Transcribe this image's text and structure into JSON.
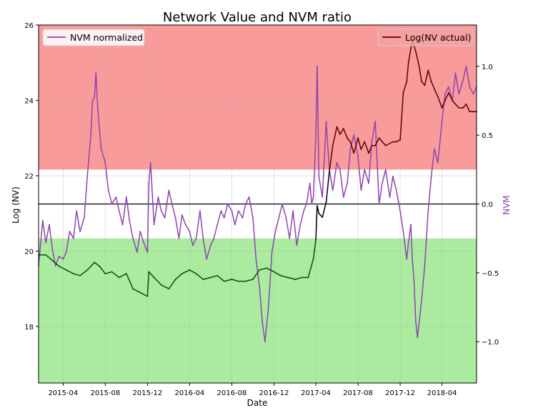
{
  "chart_data": {
    "type": "line",
    "title": "Network Value and NVM ratio",
    "xlabel": "Date",
    "ylabel_left": "Log (NV)",
    "ylabel_right": "NVM",
    "x_ticks": [
      "2015-04",
      "2015-08",
      "2015-12",
      "2016-04",
      "2016-08",
      "2016-12",
      "2017-04",
      "2017-08",
      "2017-12",
      "2018-04"
    ],
    "xlim": [
      "2015-01-20",
      "2018-07-10"
    ],
    "ylim_left": [
      16.5,
      26.0
    ],
    "y_ticks_left": [
      18,
      20,
      22,
      24,
      26
    ],
    "ylim_right": [
      -1.3,
      1.3
    ],
    "y_ticks_right": [
      -1.0,
      -0.5,
      0.0,
      0.5,
      1.0
    ],
    "grid": true,
    "zero_line_nvm": 0.0,
    "bands_nvm": [
      {
        "from": 0.25,
        "to": 1.3,
        "color": "#f99b9b"
      },
      {
        "from": -1.3,
        "to": -0.25,
        "color": "#aaeba0"
      }
    ],
    "series": [
      {
        "name": "NVM normalized",
        "axis": "right",
        "color": "#8e44ad",
        "x": [
          "2015-01-20",
          "2015-02-01",
          "2015-02-10",
          "2015-02-20",
          "2015-03-01",
          "2015-03-10",
          "2015-03-20",
          "2015-04-01",
          "2015-04-10",
          "2015-04-20",
          "2015-05-01",
          "2015-05-10",
          "2015-05-20",
          "2015-06-01",
          "2015-06-10",
          "2015-06-20",
          "2015-06-25",
          "2015-07-01",
          "2015-07-05",
          "2015-07-10",
          "2015-07-20",
          "2015-08-01",
          "2015-08-10",
          "2015-08-20",
          "2015-09-01",
          "2015-09-10",
          "2015-09-20",
          "2015-10-01",
          "2015-10-10",
          "2015-10-20",
          "2015-11-01",
          "2015-11-10",
          "2015-11-20",
          "2015-12-01",
          "2015-12-05",
          "2015-12-10",
          "2015-12-20",
          "2016-01-01",
          "2016-01-10",
          "2016-01-20",
          "2016-02-01",
          "2016-02-10",
          "2016-02-20",
          "2016-03-01",
          "2016-03-10",
          "2016-03-20",
          "2016-04-01",
          "2016-04-10",
          "2016-04-20",
          "2016-05-01",
          "2016-05-10",
          "2016-05-20",
          "2016-06-01",
          "2016-06-10",
          "2016-06-20",
          "2016-07-01",
          "2016-07-10",
          "2016-07-20",
          "2016-08-01",
          "2016-08-10",
          "2016-08-20",
          "2016-09-01",
          "2016-09-10",
          "2016-09-20",
          "2016-10-01",
          "2016-10-10",
          "2016-10-20",
          "2016-10-28",
          "2016-11-05",
          "2016-11-15",
          "2016-11-25",
          "2016-12-05",
          "2016-12-15",
          "2016-12-25",
          "2017-01-05",
          "2017-01-15",
          "2017-01-25",
          "2017-02-05",
          "2017-02-15",
          "2017-02-25",
          "2017-03-05",
          "2017-03-15",
          "2017-03-20",
          "2017-03-25",
          "2017-04-01",
          "2017-04-05",
          "2017-04-10",
          "2017-04-20",
          "2017-05-01",
          "2017-05-10",
          "2017-05-20",
          "2017-06-01",
          "2017-06-10",
          "2017-06-20",
          "2017-07-01",
          "2017-07-10",
          "2017-07-20",
          "2017-08-01",
          "2017-08-10",
          "2017-08-20",
          "2017-09-01",
          "2017-09-10",
          "2017-09-20",
          "2017-10-01",
          "2017-10-10",
          "2017-10-20",
          "2017-11-01",
          "2017-11-10",
          "2017-11-20",
          "2017-12-01",
          "2017-12-10",
          "2017-12-20",
          "2017-12-25",
          "2018-01-01",
          "2018-01-05",
          "2018-01-10",
          "2018-01-15",
          "2018-01-20",
          "2018-02-01",
          "2018-02-10",
          "2018-02-20",
          "2018-03-01",
          "2018-03-10",
          "2018-03-20",
          "2018-04-01",
          "2018-04-10",
          "2018-04-20",
          "2018-05-01",
          "2018-05-10",
          "2018-05-20",
          "2018-06-01",
          "2018-06-10",
          "2018-06-20",
          "2018-07-01",
          "2018-07-10"
        ],
        "values": [
          -0.45,
          -0.12,
          -0.28,
          -0.15,
          -0.33,
          -0.45,
          -0.38,
          -0.4,
          -0.35,
          -0.2,
          -0.25,
          -0.05,
          -0.2,
          -0.1,
          0.2,
          0.5,
          0.75,
          0.78,
          0.95,
          0.7,
          0.4,
          0.3,
          0.1,
          0.0,
          0.05,
          -0.05,
          -0.15,
          0.05,
          -0.12,
          -0.25,
          -0.35,
          -0.2,
          -0.28,
          -0.35,
          0.15,
          0.3,
          -0.15,
          0.05,
          -0.05,
          -0.1,
          0.1,
          0.0,
          -0.1,
          -0.25,
          -0.08,
          -0.15,
          -0.2,
          -0.3,
          -0.25,
          -0.05,
          -0.25,
          -0.4,
          -0.3,
          -0.25,
          -0.15,
          -0.05,
          -0.1,
          0.0,
          -0.05,
          -0.15,
          -0.05,
          -0.1,
          0.0,
          0.05,
          -0.1,
          -0.4,
          -0.6,
          -0.85,
          -1.0,
          -0.75,
          -0.35,
          -0.2,
          -0.1,
          0.0,
          -0.1,
          -0.25,
          -0.05,
          -0.3,
          -0.15,
          -0.05,
          0.0,
          0.15,
          0.0,
          0.05,
          0.5,
          1.0,
          0.2,
          0.05,
          0.6,
          0.25,
          0.1,
          0.3,
          0.25,
          0.05,
          0.15,
          0.4,
          0.5,
          0.35,
          0.1,
          0.25,
          0.15,
          0.45,
          0.6,
          0.0,
          0.15,
          0.25,
          0.05,
          0.2,
          0.1,
          -0.05,
          -0.2,
          -0.4,
          -0.28,
          -0.15,
          -0.4,
          -0.55,
          -0.85,
          -0.97,
          -0.7,
          -0.45,
          -0.05,
          0.2,
          0.4,
          0.3,
          0.6,
          0.8,
          0.85,
          0.75,
          0.95,
          0.8,
          0.9,
          1.0,
          0.85,
          0.8,
          0.85
        ]
      },
      {
        "name": "Log(NV actual)",
        "axis": "left",
        "color": "#000000",
        "x": [
          "2015-01-20",
          "2015-02-10",
          "2015-03-01",
          "2015-03-20",
          "2015-04-10",
          "2015-05-01",
          "2015-05-20",
          "2015-06-10",
          "2015-07-01",
          "2015-07-15",
          "2015-08-01",
          "2015-08-20",
          "2015-09-10",
          "2015-10-01",
          "2015-10-20",
          "2015-11-10",
          "2015-12-01",
          "2015-12-05",
          "2015-12-20",
          "2016-01-10",
          "2016-02-01",
          "2016-02-20",
          "2016-03-10",
          "2016-04-01",
          "2016-04-20",
          "2016-05-10",
          "2016-06-01",
          "2016-06-20",
          "2016-07-10",
          "2016-08-01",
          "2016-08-20",
          "2016-09-10",
          "2016-10-01",
          "2016-10-20",
          "2016-11-10",
          "2016-12-01",
          "2016-12-20",
          "2017-01-10",
          "2017-02-01",
          "2017-02-20",
          "2017-03-10",
          "2017-03-25",
          "2017-04-01",
          "2017-04-05",
          "2017-04-10",
          "2017-04-20",
          "2017-05-01",
          "2017-05-10",
          "2017-05-20",
          "2017-06-01",
          "2017-06-10",
          "2017-06-20",
          "2017-07-01",
          "2017-07-10",
          "2017-07-20",
          "2017-08-01",
          "2017-08-10",
          "2017-08-20",
          "2017-09-01",
          "2017-09-10",
          "2017-09-20",
          "2017-10-01",
          "2017-10-20",
          "2017-11-10",
          "2017-11-20",
          "2017-12-01",
          "2017-12-10",
          "2017-12-20",
          "2017-12-25",
          "2018-01-05",
          "2018-01-15",
          "2018-01-25",
          "2018-02-01",
          "2018-02-10",
          "2018-02-20",
          "2018-03-01",
          "2018-03-10",
          "2018-03-20",
          "2018-04-01",
          "2018-04-10",
          "2018-04-20",
          "2018-05-01",
          "2018-05-10",
          "2018-05-20",
          "2018-06-01",
          "2018-06-10",
          "2018-06-20",
          "2018-07-01",
          "2018-07-10"
        ],
        "values": [
          19.9,
          19.9,
          19.75,
          19.6,
          19.5,
          19.4,
          19.35,
          19.5,
          19.7,
          19.6,
          19.4,
          19.45,
          19.3,
          19.4,
          19.0,
          18.9,
          18.8,
          19.45,
          19.3,
          19.1,
          19.0,
          19.25,
          19.4,
          19.5,
          19.4,
          19.25,
          19.3,
          19.35,
          19.2,
          19.25,
          19.2,
          19.2,
          19.25,
          19.5,
          19.55,
          19.45,
          19.35,
          19.3,
          19.25,
          19.3,
          19.3,
          19.8,
          20.3,
          21.2,
          21.0,
          20.9,
          21.3,
          22.1,
          22.8,
          23.3,
          23.1,
          23.25,
          23.0,
          22.9,
          22.6,
          23.0,
          22.7,
          22.9,
          22.6,
          22.8,
          22.8,
          23.0,
          22.8,
          22.9,
          22.9,
          22.95,
          24.2,
          24.5,
          25.0,
          25.6,
          25.3,
          24.9,
          24.5,
          24.4,
          24.8,
          24.5,
          24.3,
          24.1,
          23.8,
          24.0,
          24.2,
          24.0,
          23.9,
          23.8,
          23.8,
          23.9,
          23.7,
          23.7,
          23.7
        ]
      }
    ],
    "legend": [
      {
        "label": "NVM normalized",
        "position": "top-left"
      },
      {
        "label": "Log(NV actual)",
        "position": "top-right"
      }
    ]
  }
}
